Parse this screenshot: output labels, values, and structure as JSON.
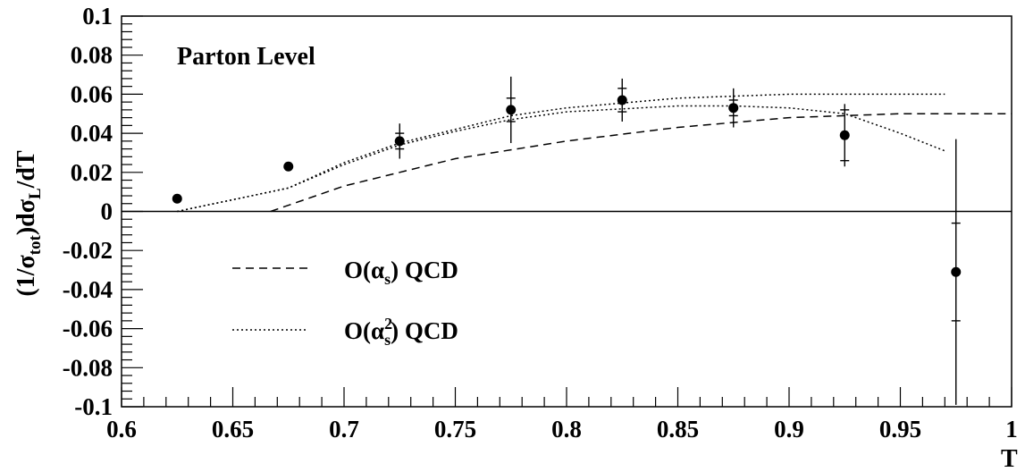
{
  "chart_data": {
    "type": "scatter",
    "annotation": "Parton Level",
    "xlabel": "T",
    "ylabel": "(1/σtot)dσL/dT",
    "xlim": [
      0.6,
      1.0
    ],
    "ylim": [
      -0.1,
      0.1
    ],
    "x_ticks": [
      "0.6",
      "0.65",
      "0.7",
      "0.75",
      "0.8",
      "0.85",
      "0.9",
      "0.95",
      "1"
    ],
    "y_ticks": [
      "0.1",
      "0.08",
      "0.06",
      "0.04",
      "0.02",
      "0",
      "-0.02",
      "-0.04",
      "-0.06",
      "-0.08",
      "-0.1"
    ],
    "grid": false,
    "legend_position": "lower-left",
    "data_points": {
      "x": [
        0.625,
        0.675,
        0.725,
        0.775,
        0.825,
        0.875,
        0.925,
        0.975
      ],
      "y": [
        0.0065,
        0.023,
        0.036,
        0.052,
        0.057,
        0.053,
        0.039,
        -0.031
      ],
      "stat_err": [
        0.0015,
        0.002,
        0.004,
        0.006,
        0.006,
        0.004,
        0.013,
        0.025
      ],
      "total_err": [
        0.0015,
        0.002,
        0.009,
        0.017,
        0.011,
        0.01,
        0.016,
        0.068
      ]
    },
    "series": [
      {
        "name": "O(αs) QCD",
        "style": "dashed",
        "x": [
          0.667,
          0.7,
          0.75,
          0.8,
          0.85,
          0.9,
          0.95,
          1.0
        ],
        "y": [
          0.0,
          0.013,
          0.027,
          0.036,
          0.043,
          0.048,
          0.05,
          0.05
        ]
      },
      {
        "name": "O(αs²) QCD",
        "style": "dotted",
        "x": [
          0.625,
          0.675,
          0.7,
          0.725,
          0.75,
          0.775,
          0.8,
          0.85,
          0.9,
          0.95,
          0.97
        ],
        "y": [
          0.0,
          0.012,
          0.025,
          0.035,
          0.042,
          0.049,
          0.053,
          0.058,
          0.06,
          0.06,
          0.06
        ]
      },
      {
        "name": "",
        "style": "dotted",
        "x": [
          0.625,
          0.675,
          0.7,
          0.725,
          0.75,
          0.775,
          0.8,
          0.85,
          0.875,
          0.9,
          0.925,
          0.95,
          0.97
        ],
        "y": [
          0.0,
          0.012,
          0.024,
          0.034,
          0.041,
          0.047,
          0.051,
          0.054,
          0.054,
          0.053,
          0.05,
          0.04,
          0.031
        ]
      }
    ]
  }
}
